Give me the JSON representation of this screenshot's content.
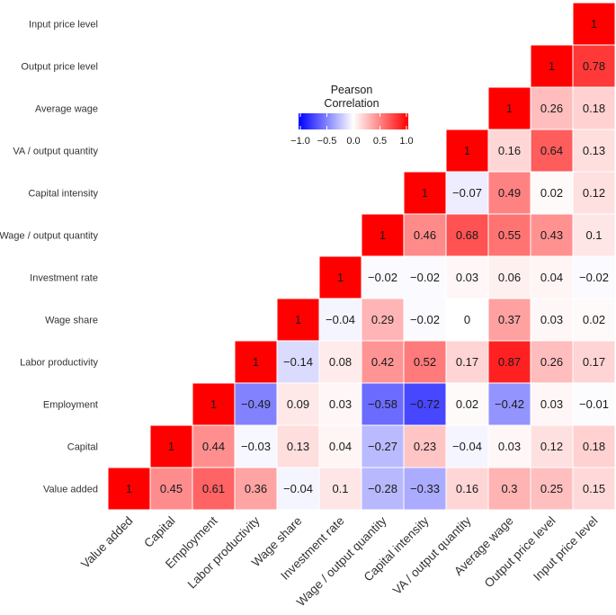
{
  "chart_data": {
    "type": "heatmap",
    "title": "",
    "xlabel": "",
    "ylabel": "",
    "variables": [
      "Value added",
      "Capital",
      "Employment",
      "Labor productivity",
      "Wage share",
      "Investment rate",
      "Wage / output quantity",
      "Capital intensity",
      "VA / output quantity",
      "Average wage",
      "Output price level",
      "Input price level"
    ],
    "matrix": [
      [
        1,
        0.45,
        0.61,
        0.36,
        -0.04,
        0.1,
        -0.28,
        -0.33,
        0.16,
        0.3,
        0.25,
        0.15
      ],
      [
        null,
        1,
        0.44,
        -0.03,
        0.13,
        0.04,
        -0.27,
        0.23,
        -0.04,
        0.03,
        0.12,
        0.18
      ],
      [
        null,
        null,
        1,
        -0.49,
        0.09,
        0.03,
        -0.58,
        -0.72,
        0.02,
        -0.42,
        0.03,
        -0.01
      ],
      [
        null,
        null,
        null,
        1,
        -0.14,
        0.08,
        0.42,
        0.52,
        0.17,
        0.87,
        0.26,
        0.17
      ],
      [
        null,
        null,
        null,
        null,
        1,
        -0.04,
        0.29,
        -0.02,
        0,
        0.37,
        0.03,
        0.02
      ],
      [
        null,
        null,
        null,
        null,
        null,
        1,
        -0.02,
        -0.02,
        0.03,
        0.06,
        0.04,
        -0.02
      ],
      [
        null,
        null,
        null,
        null,
        null,
        null,
        1,
        0.46,
        0.68,
        0.55,
        0.43,
        0.1
      ],
      [
        null,
        null,
        null,
        null,
        null,
        null,
        null,
        1,
        -0.07,
        0.49,
        0.02,
        0.12
      ],
      [
        null,
        null,
        null,
        null,
        null,
        null,
        null,
        null,
        1,
        0.16,
        0.64,
        0.13
      ],
      [
        null,
        null,
        null,
        null,
        null,
        null,
        null,
        null,
        null,
        1,
        0.26,
        0.18
      ],
      [
        null,
        null,
        null,
        null,
        null,
        null,
        null,
        null,
        null,
        null,
        1,
        0.78
      ],
      [
        null,
        null,
        null,
        null,
        null,
        null,
        null,
        null,
        null,
        null,
        null,
        1
      ]
    ],
    "legend": {
      "title_line1": "Pearson",
      "title_line2": "Correlation",
      "ticks": [
        -1.0,
        -0.5,
        0.0,
        0.5,
        1.0
      ],
      "tick_labels": [
        "−1.0",
        "−0.5",
        "0.0",
        "0.5",
        "1.0"
      ],
      "range": [
        -1,
        1
      ],
      "position": "top-center"
    },
    "colors": {
      "low": "#0000ff",
      "mid": "#ffffff",
      "high": "#ff0000",
      "cell_border": "#ffffff"
    }
  }
}
